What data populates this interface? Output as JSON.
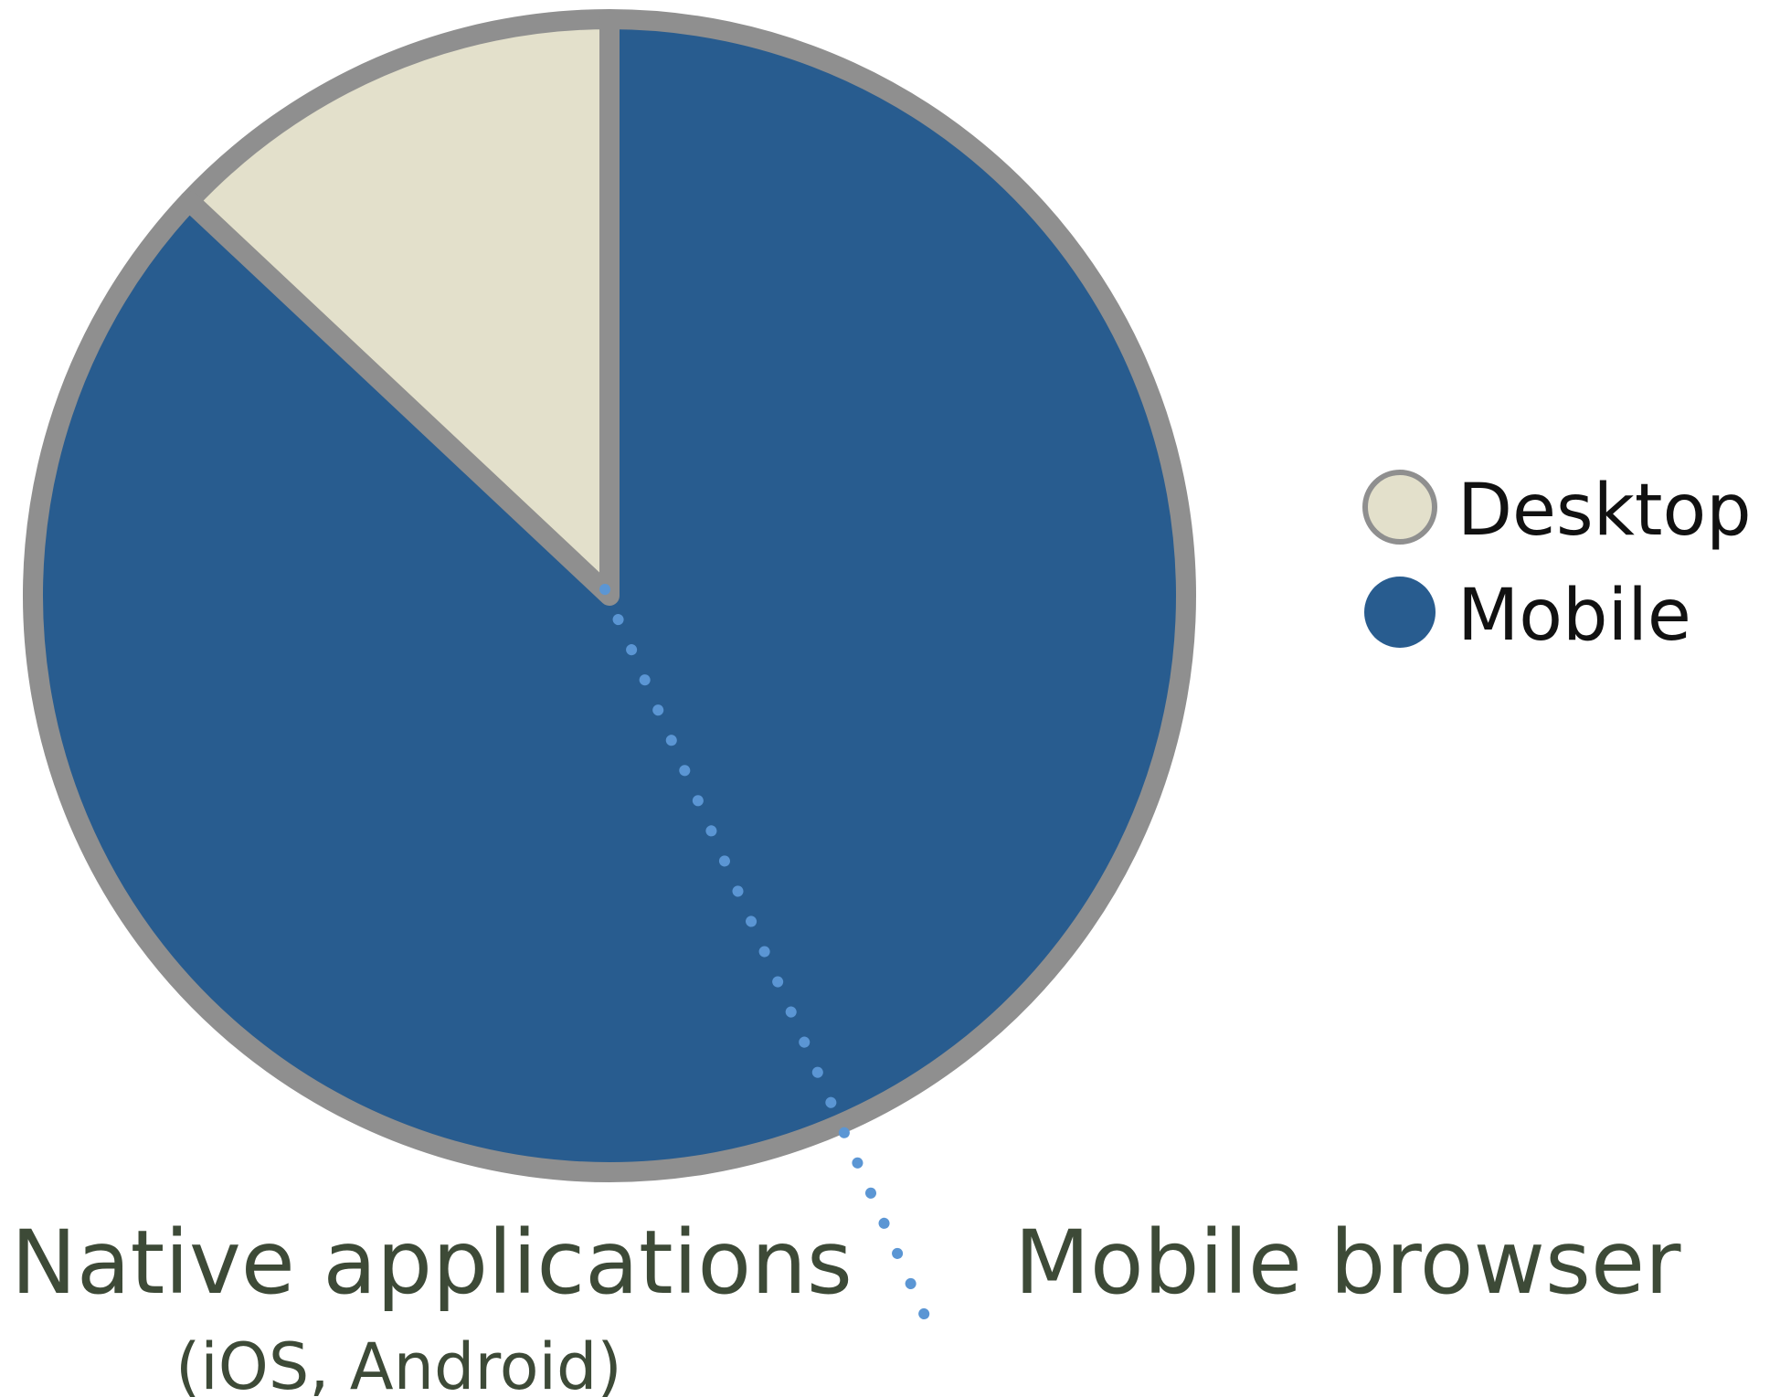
{
  "chart_data": {
    "type": "pie",
    "title": "",
    "categories": [
      "Desktop",
      "Mobile"
    ],
    "values": [
      13,
      87
    ],
    "colors": {
      "Desktop": "#e3e0cb",
      "Mobile": "#285c8f",
      "border": "#8f8f8f",
      "divider": "#5b96d4"
    },
    "legend": {
      "position": "right",
      "items": [
        "Desktop",
        "Mobile"
      ]
    },
    "annotations": {
      "left_title": "Native applications",
      "left_subtitle": "(iOS, Android)",
      "right_title": "Mobile browser"
    },
    "grid": false
  }
}
